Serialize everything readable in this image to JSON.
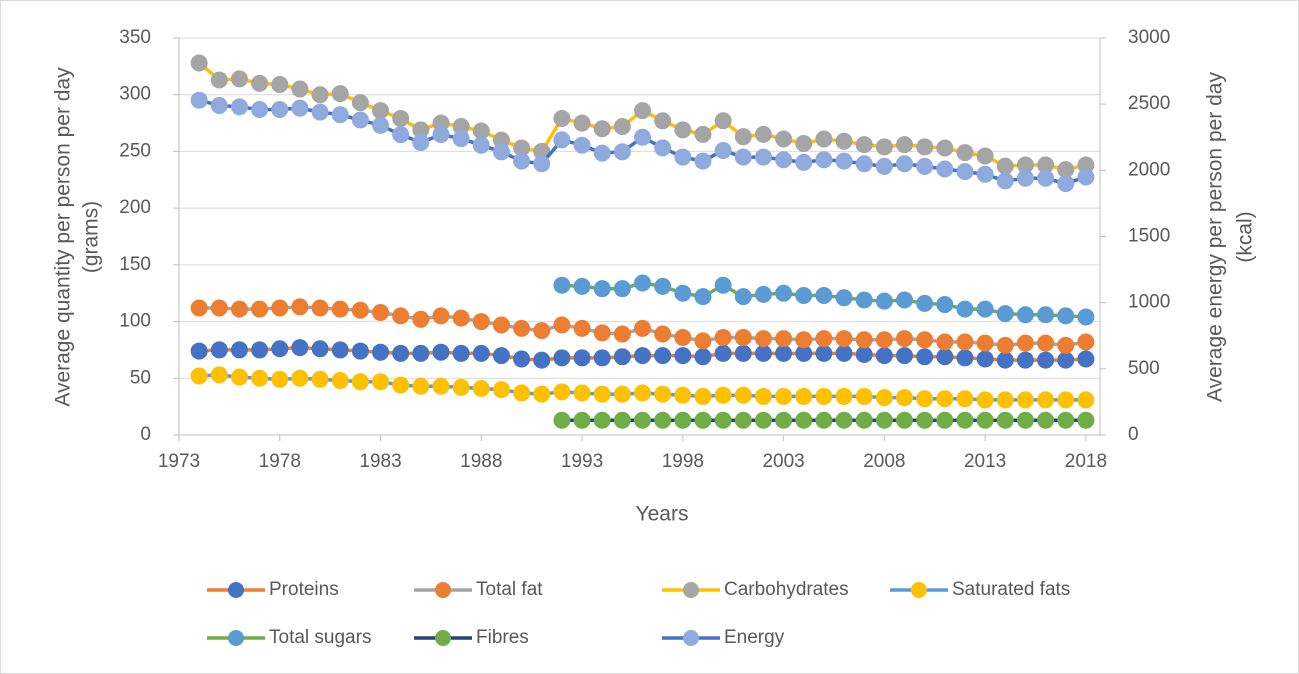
{
  "chart_data": {
    "type": "line",
    "xlabel": "Years",
    "ylabel": [
      "Average quantity per person per day",
      "(grams)"
    ],
    "y2label": [
      "Average energy per person per day",
      "(kcal)"
    ],
    "x": [
      1974,
      1975,
      1976,
      1977,
      1978,
      1979,
      1980,
      1981,
      1982,
      1983,
      1984,
      1985,
      1986,
      1987,
      1988,
      1989,
      1990,
      1991,
      1992,
      1993,
      1994,
      1995,
      1996,
      1997,
      1998,
      1999,
      2000,
      2001,
      2002,
      2003,
      2004,
      2005,
      2006,
      2007,
      2008,
      2009,
      2010,
      2011,
      2012,
      2013,
      2014,
      2015,
      2016,
      2017,
      2018
    ],
    "xlim": [
      1973,
      2018.7
    ],
    "xticks": [
      1973,
      1978,
      1983,
      1988,
      1993,
      1998,
      2003,
      2008,
      2013,
      2018
    ],
    "ylim": [
      0,
      350
    ],
    "yticks": [
      0,
      50,
      100,
      150,
      200,
      250,
      300,
      350
    ],
    "y2lim": [
      0,
      3000
    ],
    "y2ticks": [
      0,
      500,
      1000,
      1500,
      2000,
      2500,
      3000
    ],
    "grid": true,
    "legend": "bottom",
    "series": [
      {
        "name": "Proteins",
        "color": "#ed7d31",
        "marker_color": "#4472c4",
        "values": [
          74,
          75,
          75,
          75,
          76,
          77,
          76,
          75,
          74,
          73,
          72,
          72,
          73,
          72,
          72,
          70,
          67,
          66,
          68,
          68,
          68,
          69,
          70,
          70,
          70,
          69,
          72,
          72,
          72,
          72,
          72,
          72,
          72,
          71,
          70,
          70,
          69,
          69,
          68,
          67,
          66,
          66,
          66,
          66,
          67
        ]
      },
      {
        "name": "Total fat",
        "color": "#a5a5a5",
        "marker_color": "#ed7d31",
        "values": [
          112,
          112,
          111,
          111,
          112,
          113,
          112,
          111,
          110,
          108,
          105,
          102,
          105,
          103,
          100,
          97,
          94,
          92,
          97,
          94,
          90,
          89,
          94,
          89,
          86,
          83,
          86,
          86,
          85,
          85,
          84,
          85,
          85,
          84,
          84,
          85,
          84,
          82,
          82,
          81,
          79,
          81,
          81,
          79,
          82
        ]
      },
      {
        "name": "Carbohydrates",
        "color": "#ffc000",
        "marker_color": "#a5a5a5",
        "values": [
          328,
          313,
          314,
          310,
          309,
          305,
          300,
          301,
          293,
          286,
          279,
          269,
          275,
          272,
          268,
          260,
          253,
          250,
          279,
          275,
          270,
          272,
          286,
          277,
          269,
          265,
          277,
          263,
          265,
          261,
          257,
          261,
          259,
          256,
          254,
          256,
          254,
          253,
          249,
          246,
          237,
          238,
          238,
          234,
          238
        ]
      },
      {
        "name": "Saturated fats",
        "color": "#5b9bd5",
        "marker_color": "#ffc000",
        "values": [
          52,
          53,
          51,
          50,
          49,
          50,
          49,
          48,
          47,
          47,
          44,
          43,
          43,
          42,
          41,
          40,
          37,
          36,
          38,
          37,
          36,
          36,
          37,
          36,
          35,
          34,
          35,
          35,
          34,
          34,
          34,
          34,
          34,
          34,
          33,
          33,
          32,
          32,
          32,
          31,
          31,
          31,
          31,
          31,
          31
        ]
      },
      {
        "name": "Total sugars",
        "color": "#70ad47",
        "marker_color": "#5b9bd5",
        "values": [
          null,
          null,
          null,
          null,
          null,
          null,
          null,
          null,
          null,
          null,
          null,
          null,
          null,
          null,
          null,
          null,
          null,
          null,
          132,
          131,
          129,
          129,
          134,
          131,
          125,
          122,
          132,
          122,
          124,
          125,
          123,
          123,
          121,
          119,
          118,
          119,
          116,
          115,
          111,
          111,
          107,
          106,
          106,
          105,
          104
        ]
      },
      {
        "name": "Fibres",
        "color": "#264478",
        "marker_color": "#70ad47",
        "values": [
          null,
          null,
          null,
          null,
          null,
          null,
          null,
          null,
          null,
          null,
          null,
          null,
          null,
          null,
          null,
          null,
          null,
          null,
          13,
          13,
          13,
          13,
          13,
          13,
          13,
          13,
          13,
          13,
          13,
          13,
          13,
          13,
          13,
          13,
          13,
          13,
          13,
          13,
          13,
          13,
          13,
          13,
          13,
          13,
          13
        ]
      },
      {
        "name": "Energy",
        "color": "#4472c4",
        "marker_color": "#8faadc",
        "axis": "y2",
        "values": [
          2530,
          2490,
          2480,
          2460,
          2460,
          2470,
          2440,
          2420,
          2380,
          2340,
          2270,
          2210,
          2270,
          2240,
          2190,
          2140,
          2070,
          2050,
          2230,
          2190,
          2130,
          2140,
          2250,
          2170,
          2100,
          2070,
          2150,
          2100,
          2100,
          2080,
          2060,
          2080,
          2070,
          2050,
          2030,
          2050,
          2030,
          2010,
          1990,
          1970,
          1920,
          1940,
          1940,
          1900,
          1950
        ]
      }
    ]
  }
}
